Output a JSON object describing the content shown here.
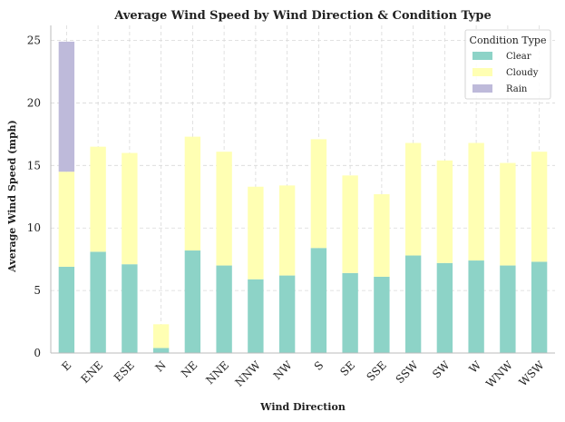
{
  "chart_data": {
    "type": "bar",
    "stacked": true,
    "title": "Average Wind Speed by Wind Direction & Condition Type",
    "xlabel": "Wind Direction",
    "ylabel": "Average Wind Speed (mph)",
    "ylim": [
      0,
      26.2
    ],
    "yticks": [
      0,
      5,
      10,
      15,
      20,
      25
    ],
    "grid": true,
    "legend": {
      "title": "Condition Type",
      "position": "top-right"
    },
    "categories": [
      "E",
      "ENE",
      "ESE",
      "N",
      "NE",
      "NNE",
      "NNW",
      "NW",
      "S",
      "SE",
      "SSE",
      "SSW",
      "SW",
      "W",
      "WNW",
      "WSW"
    ],
    "series": [
      {
        "name": "Clear",
        "color": "#8dd3c7",
        "values": [
          6.9,
          8.1,
          7.1,
          0.4,
          8.2,
          7.0,
          5.9,
          6.2,
          8.4,
          6.4,
          6.1,
          7.8,
          7.2,
          7.4,
          7.0,
          7.3
        ]
      },
      {
        "name": "Cloudy",
        "color": "#ffffb3",
        "values": [
          7.6,
          8.4,
          8.9,
          1.9,
          9.1,
          9.1,
          7.4,
          7.2,
          8.7,
          7.8,
          6.6,
          9.0,
          8.2,
          9.4,
          8.2,
          8.8
        ]
      },
      {
        "name": "Rain",
        "color": "#bebada",
        "values": [
          10.4,
          0,
          0,
          0,
          0,
          0,
          0,
          0,
          0,
          0,
          0,
          0,
          0,
          0,
          0,
          0
        ]
      }
    ]
  }
}
